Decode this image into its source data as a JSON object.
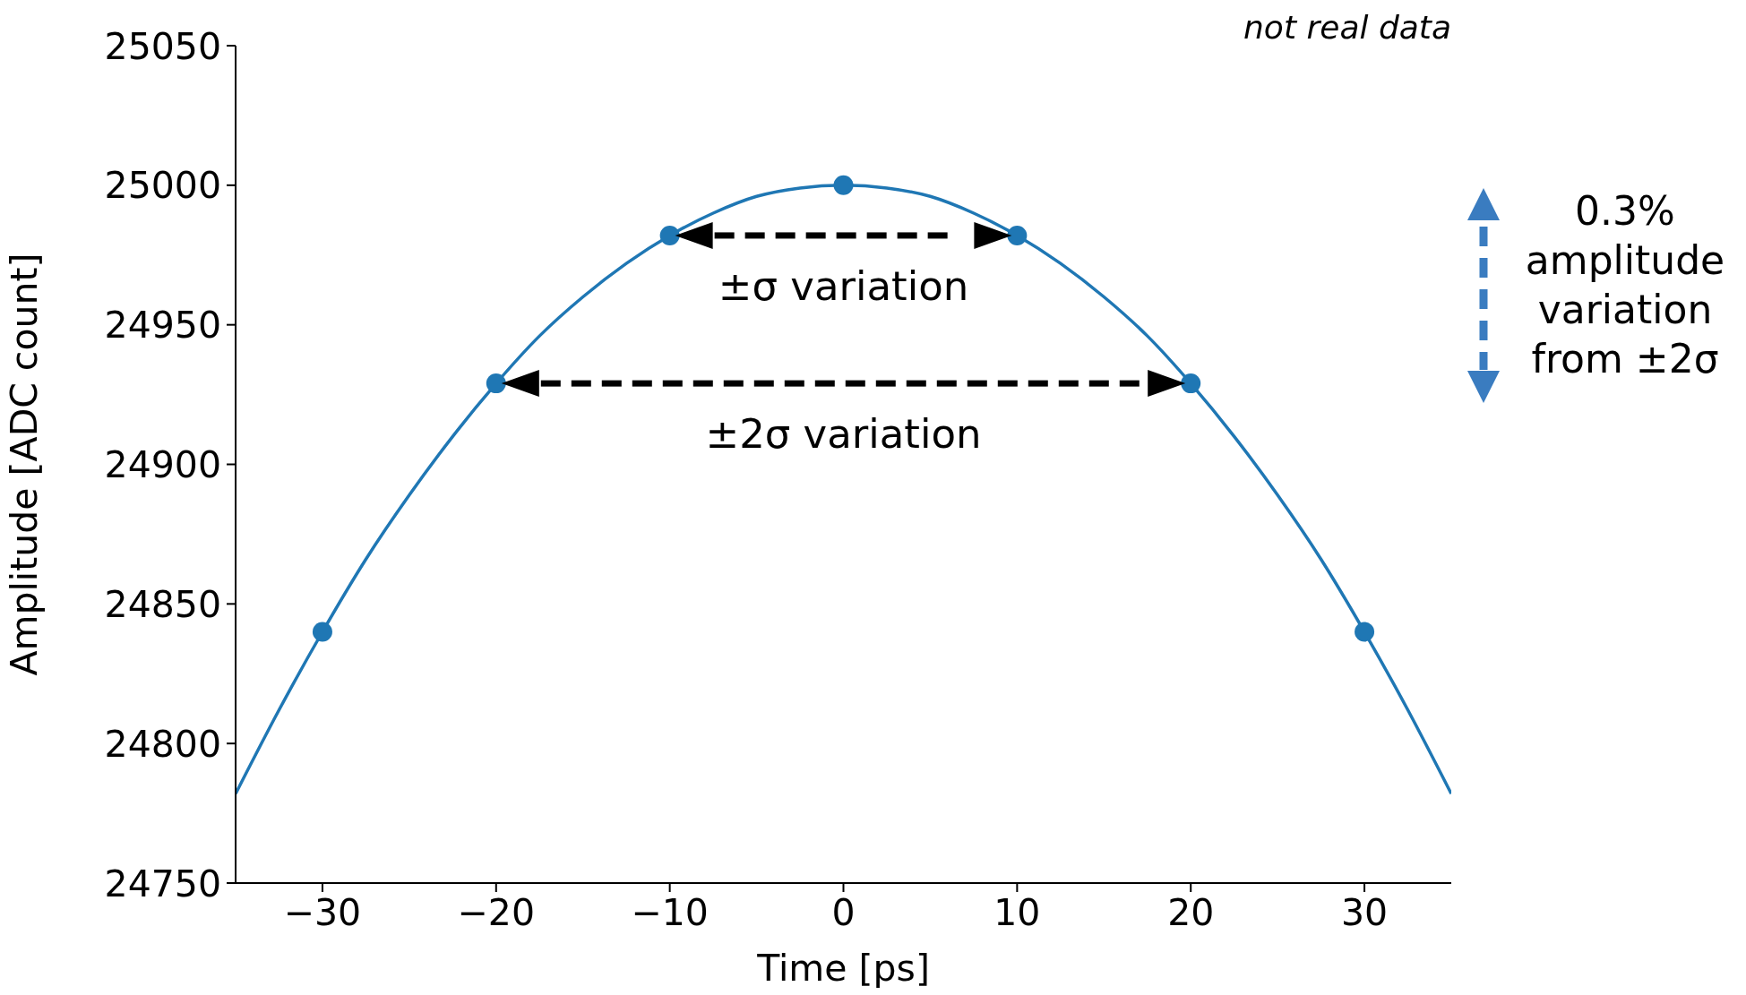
{
  "chart_data": {
    "type": "line",
    "xlabel": "Time [ps]",
    "ylabel": "Amplitude [ADC count]",
    "xlim": [
      -35,
      35
    ],
    "xticks": [
      {
        "value": -30,
        "label": "−30"
      },
      {
        "value": -20,
        "label": "−20"
      },
      {
        "value": -10,
        "label": "−10"
      },
      0,
      10,
      20,
      30
    ],
    "ylim": [
      24750,
      25050
    ],
    "yticks": [
      24750,
      24800,
      24850,
      24900,
      24950,
      25000,
      25050
    ],
    "series": [
      {
        "type": "line",
        "color": "#1f77b4",
        "marker": "none",
        "x": [
          -35,
          -32.5,
          -30,
          -27.5,
          -25,
          -22.5,
          -20,
          -17.5,
          -15,
          -12.5,
          -10,
          -7.5,
          -5,
          -2.5,
          0,
          2.5,
          5,
          7.5,
          10,
          12.5,
          15,
          17.5,
          20,
          22.5,
          25,
          27.5,
          30,
          32.5,
          35
        ],
        "values": [
          24782,
          24812,
          24840,
          24866,
          24889,
          24910,
          24929,
          24946,
          24960,
          24972,
          24982,
          24990,
          24996,
          24999,
          25000,
          24999,
          24996,
          24990,
          24982,
          24972,
          24960,
          24946,
          24929,
          24910,
          24889,
          24866,
          24840,
          24812,
          24782
        ]
      },
      {
        "type": "scatter",
        "color": "#1f77b4",
        "marker": "circle",
        "x": [
          -30,
          -20,
          -10,
          0,
          10,
          20,
          30
        ],
        "values": [
          24840,
          24929,
          24982,
          25000,
          24982,
          24929,
          24840
        ]
      }
    ],
    "annotations": [
      "not real data",
      "0.3% amplitude variation from ±2σ",
      "±σ variation",
      "±2σ variation"
    ]
  }
}
